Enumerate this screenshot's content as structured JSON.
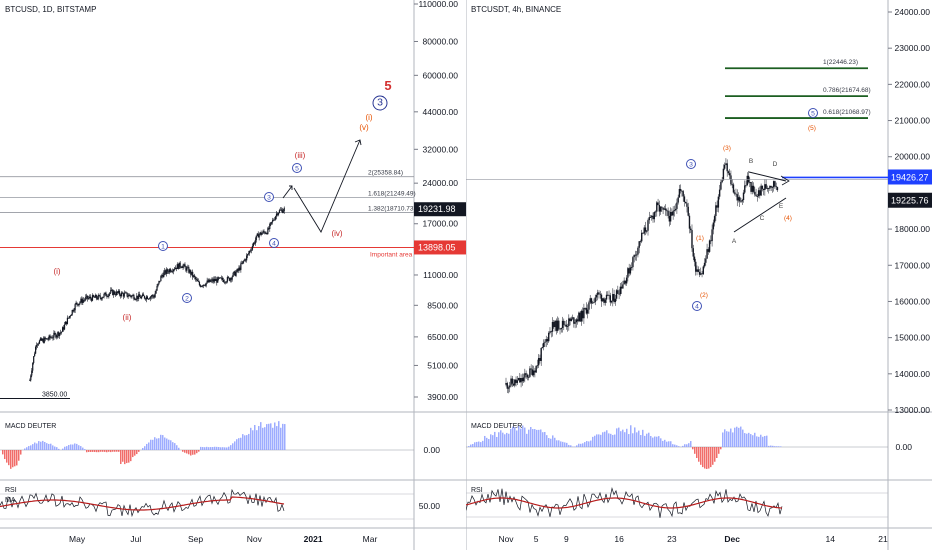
{
  "chart_data": [
    {
      "type": "candlestick",
      "symbol_title": "BTCUSD, 1D, BITSTAMP",
      "y_scale": "log",
      "price_axis_ticks": [
        "110000.00",
        "80000.00",
        "60000.00",
        "44000.00",
        "32000.00",
        "24000.00",
        "17000.00",
        "11000.00",
        "8500.00",
        "6500.00",
        "5100.00",
        "3900.00"
      ],
      "price_axis_tick_values": [
        110000,
        80000,
        60000,
        44000,
        32000,
        24000,
        17000,
        11000,
        8500,
        6500,
        5100,
        3900
      ],
      "time_axis_labels": [
        "May",
        "Jul",
        "Sep",
        "Nov",
        "2021",
        "Mar"
      ],
      "price_path_approx": {
        "dates": [
          "2020-03-13",
          "2020-03-20",
          "2020-04-01",
          "2020-04-15",
          "2020-04-30",
          "2020-05-10",
          "2020-05-25",
          "2020-06-05",
          "2020-06-20",
          "2020-07-05",
          "2020-07-20",
          "2020-07-28",
          "2020-08-05",
          "2020-08-17",
          "2020-08-25",
          "2020-09-05",
          "2020-09-20",
          "2020-10-05",
          "2020-10-15",
          "2020-10-25",
          "2020-11-05",
          "2020-11-15",
          "2020-11-25",
          "2020-12-02"
        ],
        "close": [
          4500,
          6200,
          6400,
          6800,
          8600,
          9000,
          9100,
          9500,
          9300,
          9100,
          9200,
          11000,
          11500,
          12000,
          11400,
          10100,
          10500,
          10600,
          11400,
          13000,
          15500,
          16000,
          18800,
          19232
        ]
      },
      "current_price_label": "19231.98",
      "horizontal_levels": [
        {
          "label": "2(25358.84)",
          "value": 25358.84
        },
        {
          "label": "1.618(21249.49)",
          "value": 21249.49
        },
        {
          "label": "1.382(18710.73)",
          "value": 18710.73
        },
        {
          "label": "13898.05",
          "value": 13898.05,
          "note": "Important area",
          "color": "#e53935"
        },
        {
          "label": "3850.00",
          "value": 3850
        }
      ],
      "wave_labels": [
        {
          "text": "(i)",
          "color": "#c62828"
        },
        {
          "text": "(ii)",
          "color": "#c62828"
        },
        {
          "text": "1",
          "color": "#3f51b5",
          "circled": true
        },
        {
          "text": "2",
          "color": "#3f51b5",
          "circled": true
        },
        {
          "text": "3",
          "color": "#3f51b5",
          "circled": true
        },
        {
          "text": "4",
          "color": "#3f51b5",
          "circled": true
        },
        {
          "text": "5",
          "color": "#3f51b5",
          "circled": true
        },
        {
          "text": "(iii)",
          "color": "#c62828"
        },
        {
          "text": "(iv)",
          "color": "#c62828"
        },
        {
          "text": "(v)",
          "color": "#e65100"
        },
        {
          "text": "(i)",
          "color": "#e65100"
        },
        {
          "text": "3",
          "color": "#283593",
          "circled": true
        },
        {
          "text": "5",
          "color": "#d32f2f"
        }
      ],
      "indicators": [
        {
          "name": "MACD DEUTER",
          "tick": "0.00"
        },
        {
          "name": "RSI",
          "secondary": "MA",
          "tick": "50.00"
        }
      ]
    },
    {
      "type": "candlestick",
      "symbol_title": "BTCUSDT, 4h, BINANCE",
      "y_scale": "linear",
      "price_axis_ticks": [
        "24000.00",
        "23000.00",
        "22000.00",
        "21000.00",
        "20000.00",
        "18000.00",
        "17000.00",
        "16000.00",
        "15000.00",
        "14000.00",
        "13000.00"
      ],
      "price_axis_tick_values": [
        24000,
        23000,
        22000,
        21000,
        20000,
        18000,
        17000,
        16000,
        15000,
        14000,
        13000
      ],
      "time_axis_labels": [
        "Nov",
        "5",
        "9",
        "16",
        "23",
        "Dec",
        "14",
        "21"
      ],
      "price_path_approx": {
        "dates": [
          "2020-11-01",
          "2020-11-03",
          "2020-11-05",
          "2020-11-07",
          "2020-11-09",
          "2020-11-11",
          "2020-11-13",
          "2020-11-15",
          "2020-11-17",
          "2020-11-19",
          "2020-11-21",
          "2020-11-23",
          "2020-11-24",
          "2020-11-25",
          "2020-11-26",
          "2020-11-27",
          "2020-11-28",
          "2020-11-30",
          "2020-12-01",
          "2020-12-02",
          "2020-12-03",
          "2020-12-04",
          "2020-12-05",
          "2020-12-06",
          "2020-12-07"
        ],
        "close": [
          13700,
          13800,
          14200,
          15300,
          15400,
          15600,
          16200,
          16000,
          16700,
          17800,
          18600,
          18300,
          19100,
          18700,
          17000,
          16800,
          17600,
          19800,
          19200,
          18700,
          19400,
          18900,
          19100,
          19250,
          19226
        ]
      },
      "current_price_label": "19225.76",
      "level_price_label": "19426.27",
      "fib_targets": [
        {
          "label": "1(22446.23)",
          "value": 22446.23
        },
        {
          "label": "0.786(21674.68)",
          "value": 21674.68
        },
        {
          "label": "0.618(21068.97)",
          "value": 21068.97
        }
      ],
      "wave_labels": [
        {
          "text": "3",
          "color": "#3f51b5",
          "circled": true
        },
        {
          "text": "4",
          "color": "#3f51b5",
          "circled": true
        },
        {
          "text": "5",
          "color": "#3f51b5",
          "circled": true
        },
        {
          "text": "(1)",
          "color": "#e65100"
        },
        {
          "text": "(2)",
          "color": "#e65100"
        },
        {
          "text": "(3)",
          "color": "#e65100"
        },
        {
          "text": "(4)",
          "color": "#e65100"
        },
        {
          "text": "(5)",
          "color": "#e65100"
        },
        {
          "text": "A",
          "color": "#424242"
        },
        {
          "text": "B",
          "color": "#424242"
        },
        {
          "text": "C",
          "color": "#424242"
        },
        {
          "text": "D",
          "color": "#424242"
        },
        {
          "text": "E",
          "color": "#424242"
        }
      ],
      "indicators": [
        {
          "name": "MACD DEUTER",
          "tick": "0.00"
        },
        {
          "name": "RSI",
          "tick": ""
        }
      ]
    }
  ],
  "colors": {
    "macd_pos": "#8c9eff",
    "macd_neg": "#ef5350",
    "rsi": "#131722",
    "rsi_ma": "#b71c1c",
    "level_red": "#e53935",
    "level_blue": "#1e40ff",
    "fib_green": "#1b5e20"
  }
}
